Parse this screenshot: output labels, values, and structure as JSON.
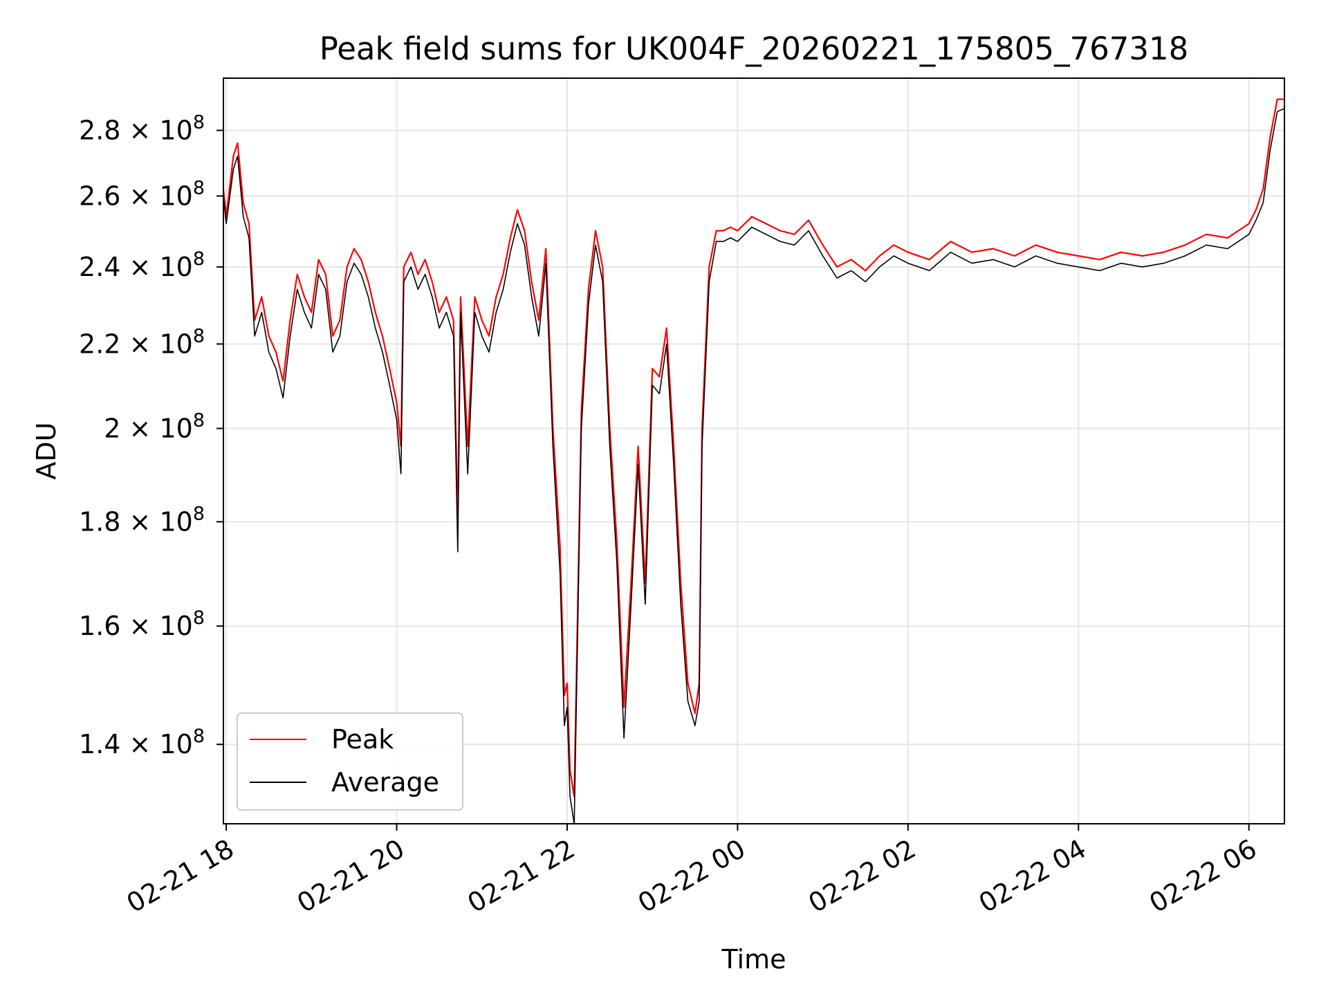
{
  "chart_data": {
    "type": "line",
    "title": "Peak field sums for UK004F_20260221_175805_767318",
    "xlabel": "Time",
    "ylabel": "ADU",
    "y_scale": "log",
    "ylim": [
      128000000,
      297000000
    ],
    "xlim": [
      "2026-02-21 17:58",
      "2026-02-22 06:25"
    ],
    "grid": true,
    "legend_position": "lower-left",
    "x_ticks": [
      {
        "t": "2026-02-21 18:00",
        "label": "02-21 18"
      },
      {
        "t": "2026-02-21 20:00",
        "label": "02-21 20"
      },
      {
        "t": "2026-02-21 22:00",
        "label": "02-21 22"
      },
      {
        "t": "2026-02-22 00:00",
        "label": "02-22 00"
      },
      {
        "t": "2026-02-22 02:00",
        "label": "02-22 02"
      },
      {
        "t": "2026-02-22 04:00",
        "label": "02-22 04"
      },
      {
        "t": "2026-02-22 06:00",
        "label": "02-22 06"
      }
    ],
    "y_ticks": [
      {
        "value": 140000000,
        "mant": "1.4",
        "exp": "8"
      },
      {
        "value": 160000000,
        "mant": "1.6",
        "exp": "8"
      },
      {
        "value": 180000000,
        "mant": "1.8",
        "exp": "8"
      },
      {
        "value": 200000000,
        "mant": "2",
        "exp": "8"
      },
      {
        "value": 220000000,
        "mant": "2.2",
        "exp": "8"
      },
      {
        "value": 240000000,
        "mant": "2.4",
        "exp": "8"
      },
      {
        "value": 260000000,
        "mant": "2.6",
        "exp": "8"
      },
      {
        "value": 280000000,
        "mant": "2.8",
        "exp": "8"
      }
    ],
    "series": [
      {
        "name": "Peak",
        "color": "#ff0000",
        "points": [
          [
            "2026-02-21 17:58",
            262000000
          ],
          [
            "2026-02-21 18:00",
            254000000
          ],
          [
            "2026-02-21 18:05",
            272000000
          ],
          [
            "2026-02-21 18:08",
            276000000
          ],
          [
            "2026-02-21 18:12",
            258000000
          ],
          [
            "2026-02-21 18:16",
            252000000
          ],
          [
            "2026-02-21 18:20",
            226000000
          ],
          [
            "2026-02-21 18:25",
            232000000
          ],
          [
            "2026-02-21 18:30",
            222000000
          ],
          [
            "2026-02-21 18:35",
            218000000
          ],
          [
            "2026-02-21 18:40",
            211000000
          ],
          [
            "2026-02-21 18:45",
            226000000
          ],
          [
            "2026-02-21 18:50",
            238000000
          ],
          [
            "2026-02-21 18:55",
            232000000
          ],
          [
            "2026-02-21 19:00",
            228000000
          ],
          [
            "2026-02-21 19:05",
            242000000
          ],
          [
            "2026-02-21 19:10",
            238000000
          ],
          [
            "2026-02-21 19:15",
            222000000
          ],
          [
            "2026-02-21 19:20",
            226000000
          ],
          [
            "2026-02-21 19:25",
            240000000
          ],
          [
            "2026-02-21 19:30",
            245000000
          ],
          [
            "2026-02-21 19:35",
            242000000
          ],
          [
            "2026-02-21 19:40",
            236000000
          ],
          [
            "2026-02-21 19:45",
            228000000
          ],
          [
            "2026-02-21 19:50",
            222000000
          ],
          [
            "2026-02-21 19:55",
            214000000
          ],
          [
            "2026-02-21 20:00",
            206000000
          ],
          [
            "2026-02-21 20:03",
            196000000
          ],
          [
            "2026-02-21 20:05",
            240000000
          ],
          [
            "2026-02-21 20:10",
            244000000
          ],
          [
            "2026-02-21 20:15",
            238000000
          ],
          [
            "2026-02-21 20:20",
            242000000
          ],
          [
            "2026-02-21 20:25",
            236000000
          ],
          [
            "2026-02-21 20:30",
            228000000
          ],
          [
            "2026-02-21 20:35",
            232000000
          ],
          [
            "2026-02-21 20:40",
            226000000
          ],
          [
            "2026-02-21 20:43",
            180000000
          ],
          [
            "2026-02-21 20:45",
            232000000
          ],
          [
            "2026-02-21 20:50",
            196000000
          ],
          [
            "2026-02-21 20:55",
            232000000
          ],
          [
            "2026-02-21 21:00",
            226000000
          ],
          [
            "2026-02-21 21:05",
            222000000
          ],
          [
            "2026-02-21 21:10",
            232000000
          ],
          [
            "2026-02-21 21:15",
            238000000
          ],
          [
            "2026-02-21 21:20",
            248000000
          ],
          [
            "2026-02-21 21:25",
            256000000
          ],
          [
            "2026-02-21 21:30",
            250000000
          ],
          [
            "2026-02-21 21:35",
            236000000
          ],
          [
            "2026-02-21 21:40",
            226000000
          ],
          [
            "2026-02-21 21:45",
            245000000
          ],
          [
            "2026-02-21 21:50",
            200000000
          ],
          [
            "2026-02-21 21:55",
            175000000
          ],
          [
            "2026-02-21 21:58",
            148000000
          ],
          [
            "2026-02-21 22:00",
            150000000
          ],
          [
            "2026-02-21 22:02",
            136000000
          ],
          [
            "2026-02-21 22:05",
            132000000
          ],
          [
            "2026-02-21 22:10",
            204000000
          ],
          [
            "2026-02-21 22:15",
            234000000
          ],
          [
            "2026-02-21 22:20",
            250000000
          ],
          [
            "2026-02-21 22:25",
            240000000
          ],
          [
            "2026-02-21 22:30",
            200000000
          ],
          [
            "2026-02-21 22:35",
            176000000
          ],
          [
            "2026-02-21 22:40",
            146000000
          ],
          [
            "2026-02-21 22:45",
            168000000
          ],
          [
            "2026-02-21 22:50",
            196000000
          ],
          [
            "2026-02-21 22:55",
            168000000
          ],
          [
            "2026-02-21 23:00",
            214000000
          ],
          [
            "2026-02-21 23:05",
            212000000
          ],
          [
            "2026-02-21 23:10",
            224000000
          ],
          [
            "2026-02-21 23:15",
            196000000
          ],
          [
            "2026-02-21 23:20",
            168000000
          ],
          [
            "2026-02-21 23:25",
            150000000
          ],
          [
            "2026-02-21 23:30",
            145000000
          ],
          [
            "2026-02-21 23:33",
            150000000
          ],
          [
            "2026-02-21 23:35",
            200000000
          ],
          [
            "2026-02-21 23:40",
            240000000
          ],
          [
            "2026-02-21 23:45",
            250000000
          ],
          [
            "2026-02-21 23:50",
            250000000
          ],
          [
            "2026-02-21 23:55",
            251000000
          ],
          [
            "2026-02-22 00:00",
            250000000
          ],
          [
            "2026-02-22 00:10",
            254000000
          ],
          [
            "2026-02-22 00:20",
            252000000
          ],
          [
            "2026-02-22 00:30",
            250000000
          ],
          [
            "2026-02-22 00:40",
            249000000
          ],
          [
            "2026-02-22 00:50",
            253000000
          ],
          [
            "2026-02-22 01:00",
            246000000
          ],
          [
            "2026-02-22 01:10",
            240000000
          ],
          [
            "2026-02-22 01:20",
            242000000
          ],
          [
            "2026-02-22 01:30",
            239000000
          ],
          [
            "2026-02-22 01:40",
            243000000
          ],
          [
            "2026-02-22 01:50",
            246000000
          ],
          [
            "2026-02-22 02:00",
            244000000
          ],
          [
            "2026-02-22 02:15",
            242000000
          ],
          [
            "2026-02-22 02:30",
            247000000
          ],
          [
            "2026-02-22 02:45",
            244000000
          ],
          [
            "2026-02-22 03:00",
            245000000
          ],
          [
            "2026-02-22 03:15",
            243000000
          ],
          [
            "2026-02-22 03:30",
            246000000
          ],
          [
            "2026-02-22 03:45",
            244000000
          ],
          [
            "2026-02-22 04:00",
            243000000
          ],
          [
            "2026-02-22 04:15",
            242000000
          ],
          [
            "2026-02-22 04:30",
            244000000
          ],
          [
            "2026-02-22 04:45",
            243000000
          ],
          [
            "2026-02-22 05:00",
            244000000
          ],
          [
            "2026-02-22 05:15",
            246000000
          ],
          [
            "2026-02-22 05:30",
            249000000
          ],
          [
            "2026-02-22 05:45",
            248000000
          ],
          [
            "2026-02-22 06:00",
            252000000
          ],
          [
            "2026-02-22 06:05",
            256000000
          ],
          [
            "2026-02-22 06:10",
            262000000
          ],
          [
            "2026-02-22 06:15",
            278000000
          ],
          [
            "2026-02-22 06:20",
            290000000
          ],
          [
            "2026-02-22 06:25",
            290000000
          ]
        ]
      },
      {
        "name": "Average",
        "color": "#000000",
        "points": [
          [
            "2026-02-21 17:58",
            260000000
          ],
          [
            "2026-02-21 18:00",
            252000000
          ],
          [
            "2026-02-21 18:05",
            268000000
          ],
          [
            "2026-02-21 18:08",
            272000000
          ],
          [
            "2026-02-21 18:12",
            254000000
          ],
          [
            "2026-02-21 18:16",
            248000000
          ],
          [
            "2026-02-21 18:20",
            222000000
          ],
          [
            "2026-02-21 18:25",
            228000000
          ],
          [
            "2026-02-21 18:30",
            218000000
          ],
          [
            "2026-02-21 18:35",
            214000000
          ],
          [
            "2026-02-21 18:40",
            207000000
          ],
          [
            "2026-02-21 18:45",
            222000000
          ],
          [
            "2026-02-21 18:50",
            234000000
          ],
          [
            "2026-02-21 18:55",
            228000000
          ],
          [
            "2026-02-21 19:00",
            224000000
          ],
          [
            "2026-02-21 19:05",
            238000000
          ],
          [
            "2026-02-21 19:10",
            234000000
          ],
          [
            "2026-02-21 19:15",
            218000000
          ],
          [
            "2026-02-21 19:20",
            222000000
          ],
          [
            "2026-02-21 19:25",
            236000000
          ],
          [
            "2026-02-21 19:30",
            241000000
          ],
          [
            "2026-02-21 19:35",
            238000000
          ],
          [
            "2026-02-21 19:40",
            232000000
          ],
          [
            "2026-02-21 19:45",
            224000000
          ],
          [
            "2026-02-21 19:50",
            218000000
          ],
          [
            "2026-02-21 19:55",
            210000000
          ],
          [
            "2026-02-21 20:00",
            202000000
          ],
          [
            "2026-02-21 20:03",
            190000000
          ],
          [
            "2026-02-21 20:05",
            236000000
          ],
          [
            "2026-02-21 20:10",
            240000000
          ],
          [
            "2026-02-21 20:15",
            234000000
          ],
          [
            "2026-02-21 20:20",
            238000000
          ],
          [
            "2026-02-21 20:25",
            232000000
          ],
          [
            "2026-02-21 20:30",
            224000000
          ],
          [
            "2026-02-21 20:35",
            228000000
          ],
          [
            "2026-02-21 20:40",
            222000000
          ],
          [
            "2026-02-21 20:43",
            174000000
          ],
          [
            "2026-02-21 20:45",
            228000000
          ],
          [
            "2026-02-21 20:50",
            190000000
          ],
          [
            "2026-02-21 20:55",
            228000000
          ],
          [
            "2026-02-21 21:00",
            222000000
          ],
          [
            "2026-02-21 21:05",
            218000000
          ],
          [
            "2026-02-21 21:10",
            228000000
          ],
          [
            "2026-02-21 21:15",
            234000000
          ],
          [
            "2026-02-21 21:20",
            244000000
          ],
          [
            "2026-02-21 21:25",
            252000000
          ],
          [
            "2026-02-21 21:30",
            246000000
          ],
          [
            "2026-02-21 21:35",
            232000000
          ],
          [
            "2026-02-21 21:40",
            222000000
          ],
          [
            "2026-02-21 21:45",
            241000000
          ],
          [
            "2026-02-21 21:50",
            196000000
          ],
          [
            "2026-02-21 21:55",
            170000000
          ],
          [
            "2026-02-21 21:58",
            143000000
          ],
          [
            "2026-02-21 22:00",
            146000000
          ],
          [
            "2026-02-21 22:02",
            132000000
          ],
          [
            "2026-02-21 22:05",
            128000000
          ],
          [
            "2026-02-21 22:10",
            200000000
          ],
          [
            "2026-02-21 22:15",
            230000000
          ],
          [
            "2026-02-21 22:20",
            246000000
          ],
          [
            "2026-02-21 22:25",
            236000000
          ],
          [
            "2026-02-21 22:30",
            196000000
          ],
          [
            "2026-02-21 22:35",
            172000000
          ],
          [
            "2026-02-21 22:40",
            141000000
          ],
          [
            "2026-02-21 22:45",
            164000000
          ],
          [
            "2026-02-21 22:50",
            192000000
          ],
          [
            "2026-02-21 22:55",
            164000000
          ],
          [
            "2026-02-21 23:00",
            210000000
          ],
          [
            "2026-02-21 23:05",
            208000000
          ],
          [
            "2026-02-21 23:10",
            220000000
          ],
          [
            "2026-02-21 23:15",
            192000000
          ],
          [
            "2026-02-21 23:20",
            164000000
          ],
          [
            "2026-02-21 23:25",
            147000000
          ],
          [
            "2026-02-21 23:30",
            143000000
          ],
          [
            "2026-02-21 23:33",
            147000000
          ],
          [
            "2026-02-21 23:35",
            196000000
          ],
          [
            "2026-02-21 23:40",
            236000000
          ],
          [
            "2026-02-21 23:45",
            247000000
          ],
          [
            "2026-02-21 23:50",
            247000000
          ],
          [
            "2026-02-21 23:55",
            248000000
          ],
          [
            "2026-02-22 00:00",
            247000000
          ],
          [
            "2026-02-22 00:10",
            251000000
          ],
          [
            "2026-02-22 00:20",
            249000000
          ],
          [
            "2026-02-22 00:30",
            247000000
          ],
          [
            "2026-02-22 00:40",
            246000000
          ],
          [
            "2026-02-22 00:50",
            250000000
          ],
          [
            "2026-02-22 01:00",
            243000000
          ],
          [
            "2026-02-22 01:10",
            237000000
          ],
          [
            "2026-02-22 01:20",
            239000000
          ],
          [
            "2026-02-22 01:30",
            236000000
          ],
          [
            "2026-02-22 01:40",
            240000000
          ],
          [
            "2026-02-22 01:50",
            243000000
          ],
          [
            "2026-02-22 02:00",
            241000000
          ],
          [
            "2026-02-22 02:15",
            239000000
          ],
          [
            "2026-02-22 02:30",
            244000000
          ],
          [
            "2026-02-22 02:45",
            241000000
          ],
          [
            "2026-02-22 03:00",
            242000000
          ],
          [
            "2026-02-22 03:15",
            240000000
          ],
          [
            "2026-02-22 03:30",
            243000000
          ],
          [
            "2026-02-22 03:45",
            241000000
          ],
          [
            "2026-02-22 04:00",
            240000000
          ],
          [
            "2026-02-22 04:15",
            239000000
          ],
          [
            "2026-02-22 04:30",
            241000000
          ],
          [
            "2026-02-22 04:45",
            240000000
          ],
          [
            "2026-02-22 05:00",
            241000000
          ],
          [
            "2026-02-22 05:15",
            243000000
          ],
          [
            "2026-02-22 05:30",
            246000000
          ],
          [
            "2026-02-22 05:45",
            245000000
          ],
          [
            "2026-02-22 06:00",
            249000000
          ],
          [
            "2026-02-22 06:05",
            253000000
          ],
          [
            "2026-02-22 06:10",
            258000000
          ],
          [
            "2026-02-22 06:15",
            274000000
          ],
          [
            "2026-02-22 06:20",
            286000000
          ],
          [
            "2026-02-22 06:25",
            287000000
          ]
        ]
      }
    ]
  }
}
